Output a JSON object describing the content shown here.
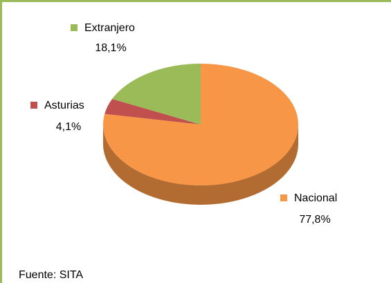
{
  "chart_data": {
    "type": "pie",
    "categories": [
      "Nacional",
      "Asturias",
      "Extranjero"
    ],
    "values": [
      77.8,
      4.1,
      18.1
    ],
    "value_labels": [
      "77,8%",
      "4,1%",
      "18,1%"
    ],
    "colors": [
      "#f79646",
      "#c0504d",
      "#9bbb59"
    ],
    "source": "Fuente: SITA"
  }
}
